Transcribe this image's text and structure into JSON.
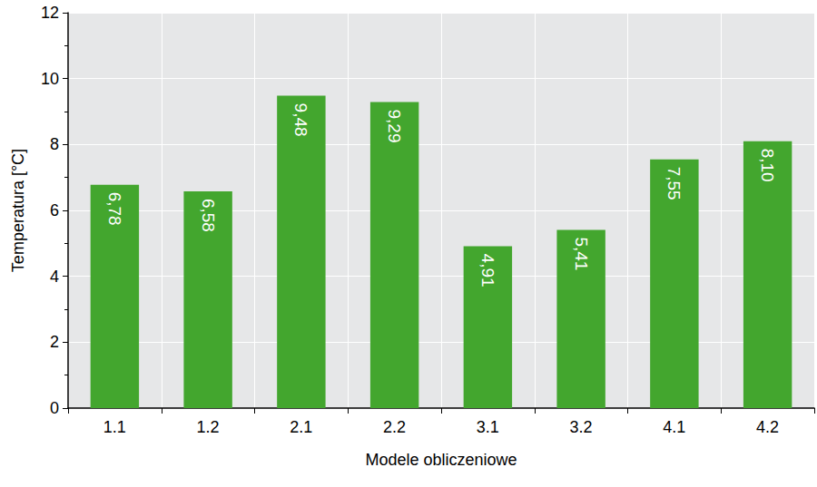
{
  "chart_data": {
    "type": "bar",
    "x_label": "Modele obliczeniowe",
    "y_label": "Temperatura [°C]",
    "categories": [
      "1.1",
      "1.2",
      "2.1",
      "2.2",
      "3.1",
      "3.2",
      "4.1",
      "4.2"
    ],
    "values": [
      6.78,
      6.58,
      9.48,
      9.29,
      4.91,
      5.41,
      7.55,
      8.1
    ],
    "value_labels": [
      "6,78",
      "6,58",
      "9,48",
      "9,29",
      "4,91",
      "5,41",
      "7,55",
      "8,10"
    ],
    "color": "#43a62e",
    "ylim": [
      0,
      12
    ],
    "yticks": [
      0,
      2,
      4,
      6,
      8,
      10,
      12
    ],
    "grid": true,
    "data_labels": true
  }
}
